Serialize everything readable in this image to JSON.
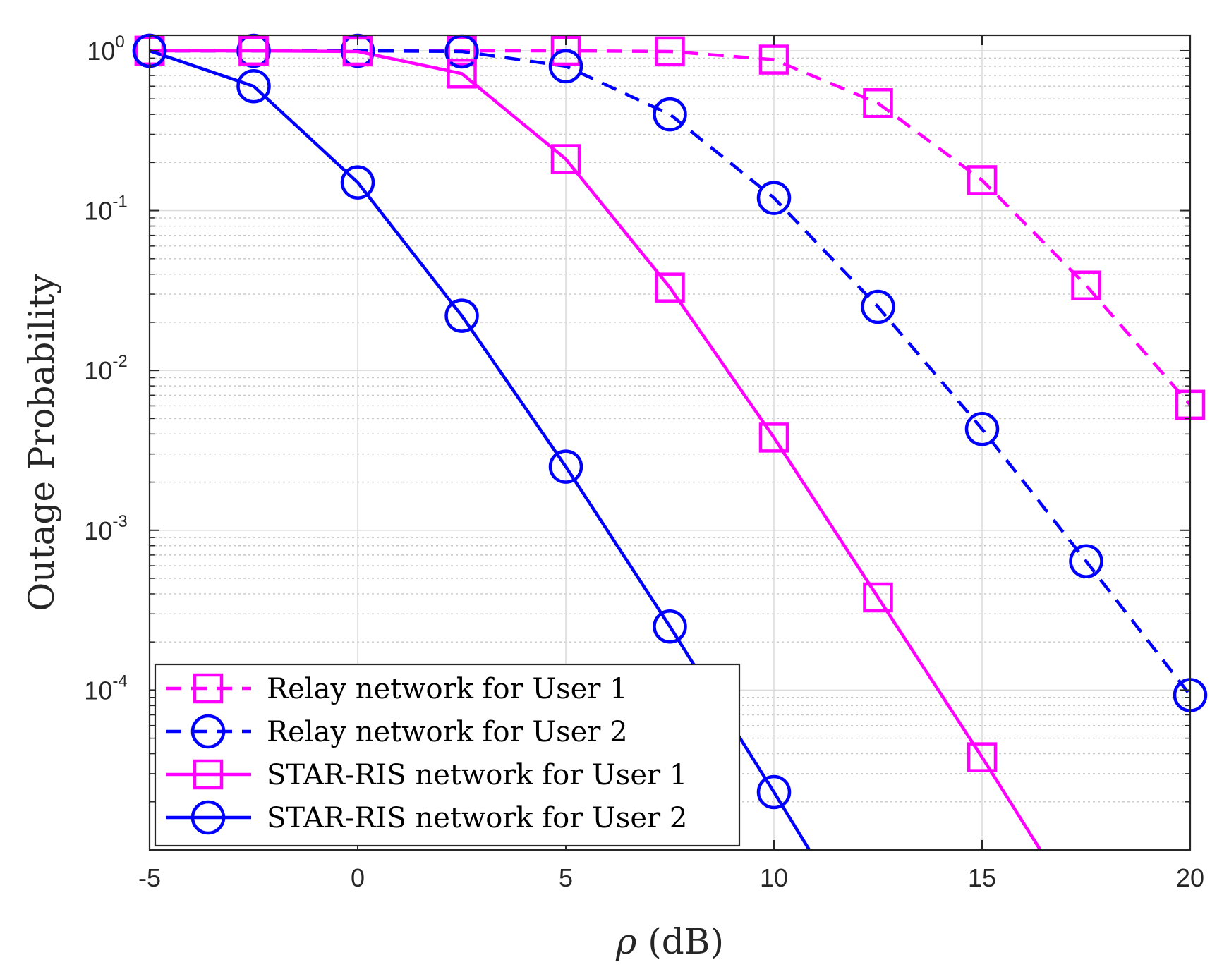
{
  "chart_data": {
    "type": "line",
    "title": "",
    "xlabel_symbol": "ρ",
    "xlabel_unit": "(dB)",
    "ylabel": "Outage Probability",
    "xlim": [
      -5,
      20
    ],
    "ylim": [
      1e-05,
      1.25
    ],
    "yscale": "log",
    "grid": true,
    "x_ticks": [
      -5,
      0,
      5,
      10,
      15,
      20
    ],
    "x_tick_labels": [
      "-5",
      "0",
      "5",
      "10",
      "15",
      "20"
    ],
    "y_ticks": [
      {
        "value": 1,
        "base": "10",
        "exp": "0"
      },
      {
        "value": 0.1,
        "base": "10",
        "exp": "-1"
      },
      {
        "value": 0.01,
        "base": "10",
        "exp": "-2"
      },
      {
        "value": 0.001,
        "base": "10",
        "exp": "-3"
      },
      {
        "value": 0.0001,
        "base": "10",
        "exp": "-4"
      }
    ],
    "legend_position": "bottom-left",
    "series": [
      {
        "name": "Relay network for User 1",
        "color": "#ff00ff",
        "line_style": "dashed",
        "marker": "square",
        "x": [
          -5,
          -2.5,
          0,
          2.5,
          5,
          7.5,
          10,
          12.5,
          15,
          17.5,
          20
        ],
        "y": [
          1.0,
          1.0,
          1.0,
          1.0,
          1.0,
          0.99,
          0.88,
          0.47,
          0.155,
          0.034,
          0.0061
        ]
      },
      {
        "name": "Relay network for User 2",
        "color": "#0000ff",
        "line_style": "dashed",
        "marker": "circle",
        "x": [
          -5,
          -2.5,
          0,
          2.5,
          5,
          7.5,
          10,
          12.5,
          15,
          17.5,
          20
        ],
        "y": [
          1.0,
          1.0,
          1.0,
          0.99,
          0.8,
          0.4,
          0.12,
          0.025,
          0.0043,
          0.00064,
          9.3e-05
        ]
      },
      {
        "name": "STAR-RIS network for User 1",
        "color": "#ff00ff",
        "line_style": "solid",
        "marker": "square",
        "x": [
          -5,
          -2.5,
          0,
          2.5,
          5,
          7.5,
          10,
          12.5,
          15,
          16.4
        ],
        "y": [
          1.0,
          1.0,
          0.99,
          0.72,
          0.21,
          0.033,
          0.0038,
          0.00038,
          3.8e-05,
          1e-05
        ]
      },
      {
        "name": "STAR-RIS network for User 2",
        "color": "#0000ff",
        "line_style": "solid",
        "marker": "circle",
        "x": [
          -5,
          -2.5,
          0,
          2.5,
          5,
          7.5,
          10,
          10.85
        ],
        "y": [
          1.0,
          0.6,
          0.15,
          0.022,
          0.0025,
          0.00025,
          2.3e-05,
          1e-05
        ]
      }
    ]
  }
}
